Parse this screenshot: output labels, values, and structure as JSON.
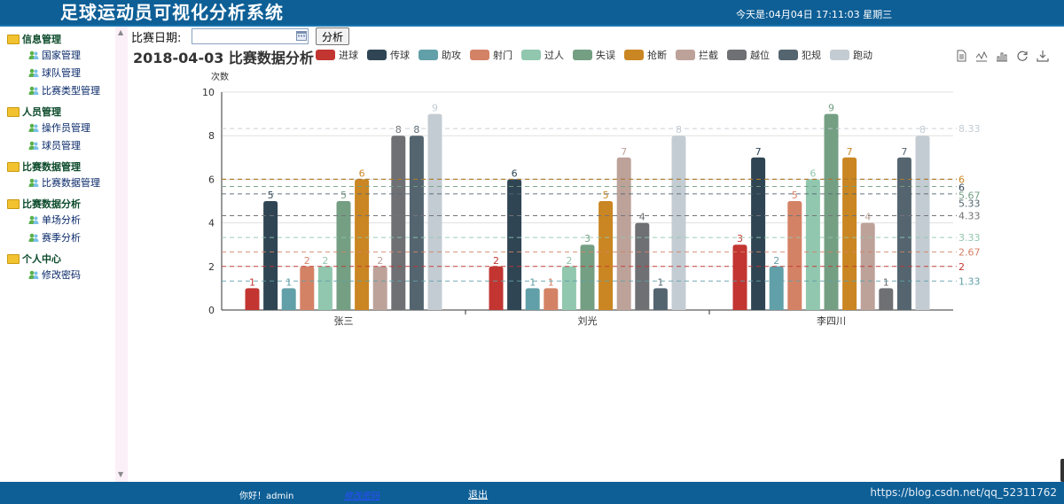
{
  "header": {
    "title": "足球运动员可视化分析系统",
    "datetime": "今天是:04月04日  17:11:03  星期三"
  },
  "sidebar": {
    "groups": [
      {
        "title": "信息管理",
        "items": [
          "国家管理",
          "球队管理",
          "比赛类型管理"
        ]
      },
      {
        "title": "人员管理",
        "items": [
          "操作员管理",
          "球员管理"
        ]
      },
      {
        "title": "比赛数据管理",
        "items": [
          "比赛数据管理"
        ]
      },
      {
        "title": "比赛数据分析",
        "items": [
          "单场分析",
          "赛季分析"
        ]
      },
      {
        "title": "个人中心",
        "items": [
          "修改密码"
        ]
      }
    ]
  },
  "filter": {
    "date_label": "比赛日期:",
    "date_value": "",
    "analyze_label": "分析"
  },
  "colors": {
    "header_bg": "#0e5f96",
    "avg_line": "#999999"
  },
  "chart_data": {
    "type": "bar",
    "title": "2018-04-03 比赛数据分析",
    "ylabel": "次数",
    "ylim": [
      0,
      10
    ],
    "yticks": [
      0,
      2,
      4,
      6,
      8,
      10
    ],
    "categories": [
      "张三",
      "刘光",
      "李四川"
    ],
    "series": [
      {
        "name": "进球",
        "color": "#c23531",
        "values": [
          1,
          2,
          3
        ],
        "average": 2
      },
      {
        "name": "传球",
        "color": "#2f4554",
        "values": [
          5,
          6,
          7
        ],
        "average": 6
      },
      {
        "name": "助攻",
        "color": "#61a0a8",
        "values": [
          1,
          1,
          2
        ],
        "average": 1.33
      },
      {
        "name": "射门",
        "color": "#d48265",
        "values": [
          2,
          1,
          5
        ],
        "average": 2.67
      },
      {
        "name": "过人",
        "color": "#91c7ae",
        "values": [
          2,
          2,
          6
        ],
        "average": 3.33
      },
      {
        "name": "失误",
        "color": "#749f83",
        "values": [
          5,
          3,
          9
        ],
        "average": 5.67
      },
      {
        "name": "抢断",
        "color": "#ca8622",
        "values": [
          6,
          5,
          7
        ],
        "average": 6
      },
      {
        "name": "拦截",
        "color": "#bda29a",
        "values": [
          2,
          7,
          4
        ],
        "average": 4.33
      },
      {
        "name": "越位",
        "color": "#6e7074",
        "values": [
          8,
          4,
          1
        ],
        "average": 4.33
      },
      {
        "name": "犯规",
        "color": "#546570",
        "values": [
          8,
          1,
          7
        ],
        "average": 5.33
      },
      {
        "name": "跑动",
        "color": "#c4ccd3",
        "values": [
          9,
          8,
          8
        ],
        "average": 8.33
      }
    ],
    "markline_labels": [
      {
        "value": 8.33,
        "text": "8.33",
        "color": "#c4ccd3"
      },
      {
        "value": 6,
        "text": "6",
        "color": "#ca8622"
      },
      {
        "value": 6,
        "text": "6",
        "color": "#2f4554"
      },
      {
        "value": 5.67,
        "text": "5.67",
        "color": "#749f83"
      },
      {
        "value": 5.33,
        "text": "5.33",
        "color": "#546570"
      },
      {
        "value": 4.33,
        "text": "4.33",
        "color": "#6e7074"
      },
      {
        "value": 3.33,
        "text": "3.33",
        "color": "#91c7ae"
      },
      {
        "value": 2.67,
        "text": "2.67",
        "color": "#d48265"
      },
      {
        "value": 2,
        "text": "2",
        "color": "#c23531"
      },
      {
        "value": 1.33,
        "text": "1.33",
        "color": "#61a0a8"
      }
    ],
    "grid": "horizontal",
    "legend_position": "top"
  },
  "toolbox": [
    "data-view-icon",
    "line-chart-icon",
    "bar-chart-icon",
    "restore-icon",
    "download-icon"
  ],
  "footer": {
    "greeting": "你好！admin",
    "change_password": "修改密码",
    "logout": "退出",
    "watermark": "https://blog.csdn.net/qq_52311762"
  }
}
